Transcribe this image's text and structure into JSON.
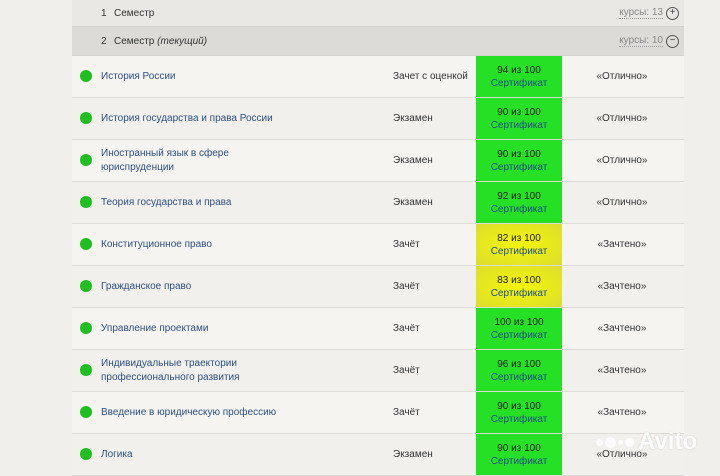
{
  "semesters": [
    {
      "num": "1",
      "label": "Семестр",
      "label_note": "",
      "courses_label": "курсы: 13",
      "toggle": "+"
    },
    {
      "num": "2",
      "label": "Семестр",
      "label_note": "(текущий)",
      "courses_label": "курсы: 10",
      "toggle": "−"
    }
  ],
  "status_color": "#1fbf1f",
  "rows": [
    {
      "course": "История России",
      "type": "Зачет с оценкой",
      "points": "94 из 100",
      "cert": "Сертификат",
      "color": "green",
      "mark": "«Отлично»"
    },
    {
      "course": "История государства и права России",
      "type": "Экзамен",
      "points": "90 из 100",
      "cert": "Сертификат",
      "color": "green",
      "mark": "«Отлично»"
    },
    {
      "course": "Иностранный язык в сфере юриспруденции",
      "type": "Экзамен",
      "points": "90 из 100",
      "cert": "Сертификат",
      "color": "green",
      "mark": "«Отлично»"
    },
    {
      "course": "Теория государства и права",
      "type": "Экзамен",
      "points": "92 из 100",
      "cert": "Сертификат",
      "color": "green",
      "mark": "«Отлично»"
    },
    {
      "course": "Конституционное право",
      "type": "Зачёт",
      "points": "82 из 100",
      "cert": "Сертификат",
      "color": "yellow",
      "mark": "«Зачтено»"
    },
    {
      "course": "Гражданское право",
      "type": "Зачёт",
      "points": "83 из 100",
      "cert": "Сертификат",
      "color": "yellow",
      "mark": "«Зачтено»"
    },
    {
      "course": "Управление проектами",
      "type": "Зачёт",
      "points": "100 из 100",
      "cert": "Сертификат",
      "color": "green",
      "mark": "«Зачтено»"
    },
    {
      "course": "Индивидуальные траектории профессионального развития",
      "type": "Зачёт",
      "points": "96 из 100",
      "cert": "Сертификат",
      "color": "green",
      "mark": "«Зачтено»"
    },
    {
      "course": "Введение в юридическую профессию",
      "type": "Зачёт",
      "points": "90 из 100",
      "cert": "Сертификат",
      "color": "green",
      "mark": "«Зачтено»"
    },
    {
      "course": "Логика",
      "type": "Экзамен",
      "points": "90 из 100",
      "cert": "Сертификат",
      "color": "green",
      "mark": "«Отлично»"
    }
  ],
  "watermark": "Avito"
}
